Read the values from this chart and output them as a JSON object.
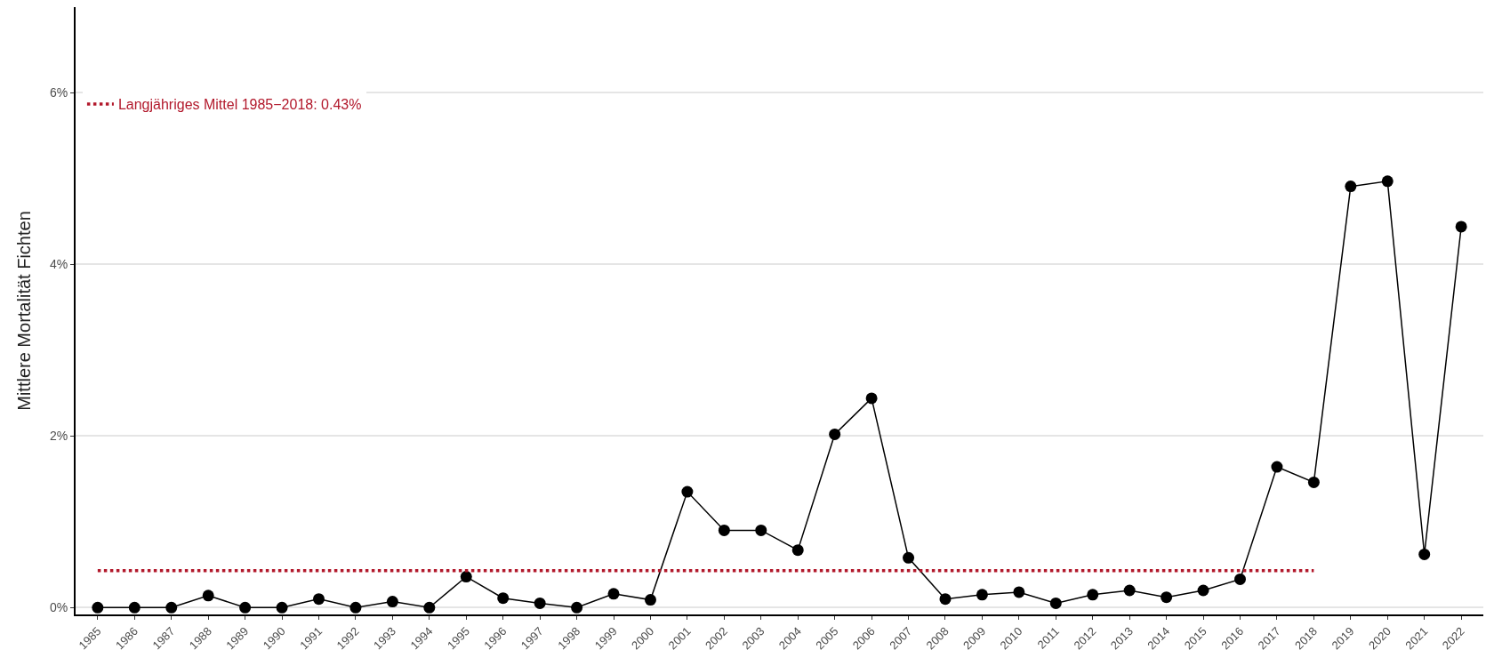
{
  "chart_data": {
    "type": "line",
    "ylabel": "Mittlere Mortalität Fichten",
    "x": [
      1985,
      1986,
      1987,
      1988,
      1989,
      1990,
      1991,
      1992,
      1993,
      1994,
      1995,
      1996,
      1997,
      1998,
      1999,
      2000,
      2001,
      2002,
      2003,
      2004,
      2005,
      2006,
      2007,
      2008,
      2009,
      2010,
      2011,
      2012,
      2013,
      2014,
      2015,
      2016,
      2017,
      2018,
      2019,
      2020,
      2021,
      2022
    ],
    "series": [
      {
        "color": "#000000",
        "marker": "circle",
        "line_style": "solid",
        "values": [
          0,
          0,
          0,
          0.14,
          0,
          0,
          0.1,
          0,
          0.07,
          0,
          0.36,
          0.11,
          0.05,
          0,
          0.16,
          0.09,
          1.35,
          0.9,
          0.9,
          0.67,
          2.02,
          2.44,
          0.58,
          0.1,
          0.15,
          0.18,
          0.05,
          0.15,
          0.2,
          0.12,
          0.2,
          0.33,
          1.64,
          1.46,
          4.91,
          4.97,
          0.62,
          4.44
        ]
      },
      {
        "name": "Langjähriges Mittel 1985−2018: 0.43%",
        "color": "#b2182b",
        "marker": "none",
        "line_style": "dotted",
        "x": [
          1985,
          2018
        ],
        "values": [
          0.43,
          0.43
        ]
      }
    ],
    "xlim": [
      1984.4,
      2022.6
    ],
    "xticks": [
      1985,
      1986,
      1987,
      1988,
      1989,
      1990,
      1991,
      1992,
      1993,
      1994,
      1995,
      1996,
      1997,
      1998,
      1999,
      2000,
      2001,
      2002,
      2003,
      2004,
      2005,
      2006,
      2007,
      2008,
      2009,
      2010,
      2011,
      2012,
      2013,
      2014,
      2015,
      2016,
      2017,
      2018,
      2019,
      2020,
      2021,
      2022
    ],
    "ylim": [
      -0.08,
      7
    ],
    "yticks": [
      {
        "value": 0,
        "label": "0%"
      },
      {
        "value": 2,
        "label": "2%"
      },
      {
        "value": 4,
        "label": "4%"
      },
      {
        "value": 6,
        "label": "6%"
      }
    ],
    "grid": "y",
    "legend": "top left"
  }
}
